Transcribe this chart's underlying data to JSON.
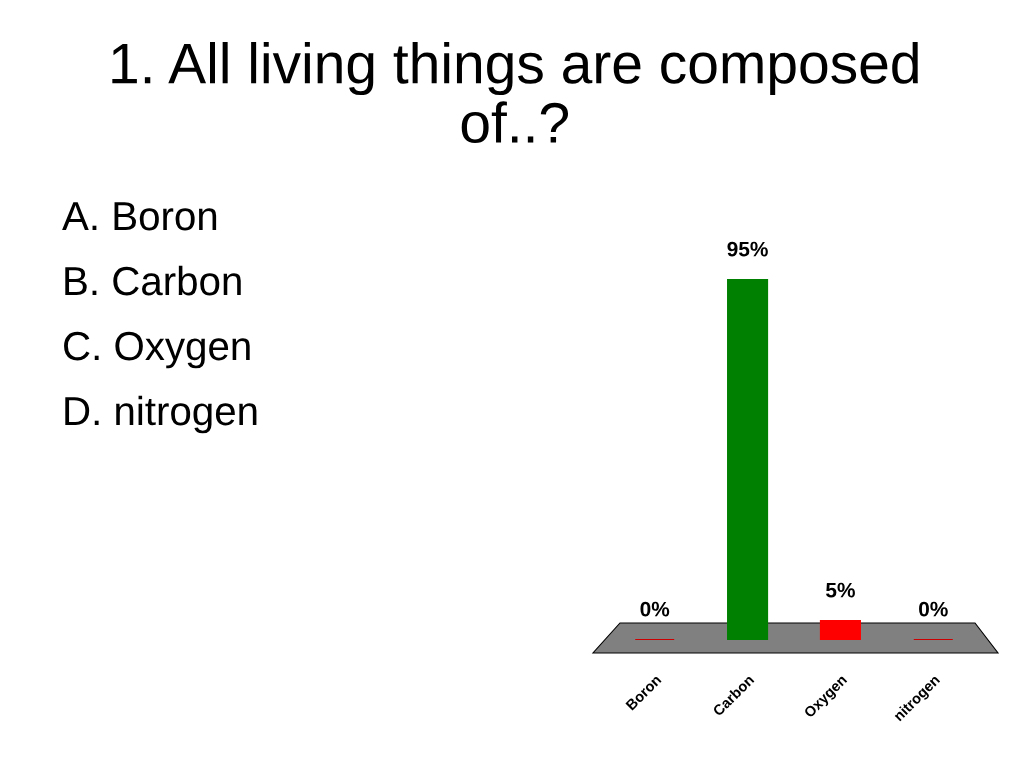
{
  "chart_data": {
    "type": "bar",
    "title": "1. All living things are composed of..?",
    "annotations": [
      "A. Boron",
      "B. Carbon",
      "C. Oxygen",
      "D. nitrogen"
    ],
    "categories": [
      "Boron",
      "Carbon",
      "Oxygen",
      "nitrogen"
    ],
    "values": [
      0,
      95,
      5,
      0
    ],
    "colors": [
      "#cc0000",
      "#008000",
      "#ff0000",
      "#cc0000"
    ],
    "value_labels": [
      "0%",
      "95%",
      "5%",
      "0%"
    ],
    "grid": false
  }
}
